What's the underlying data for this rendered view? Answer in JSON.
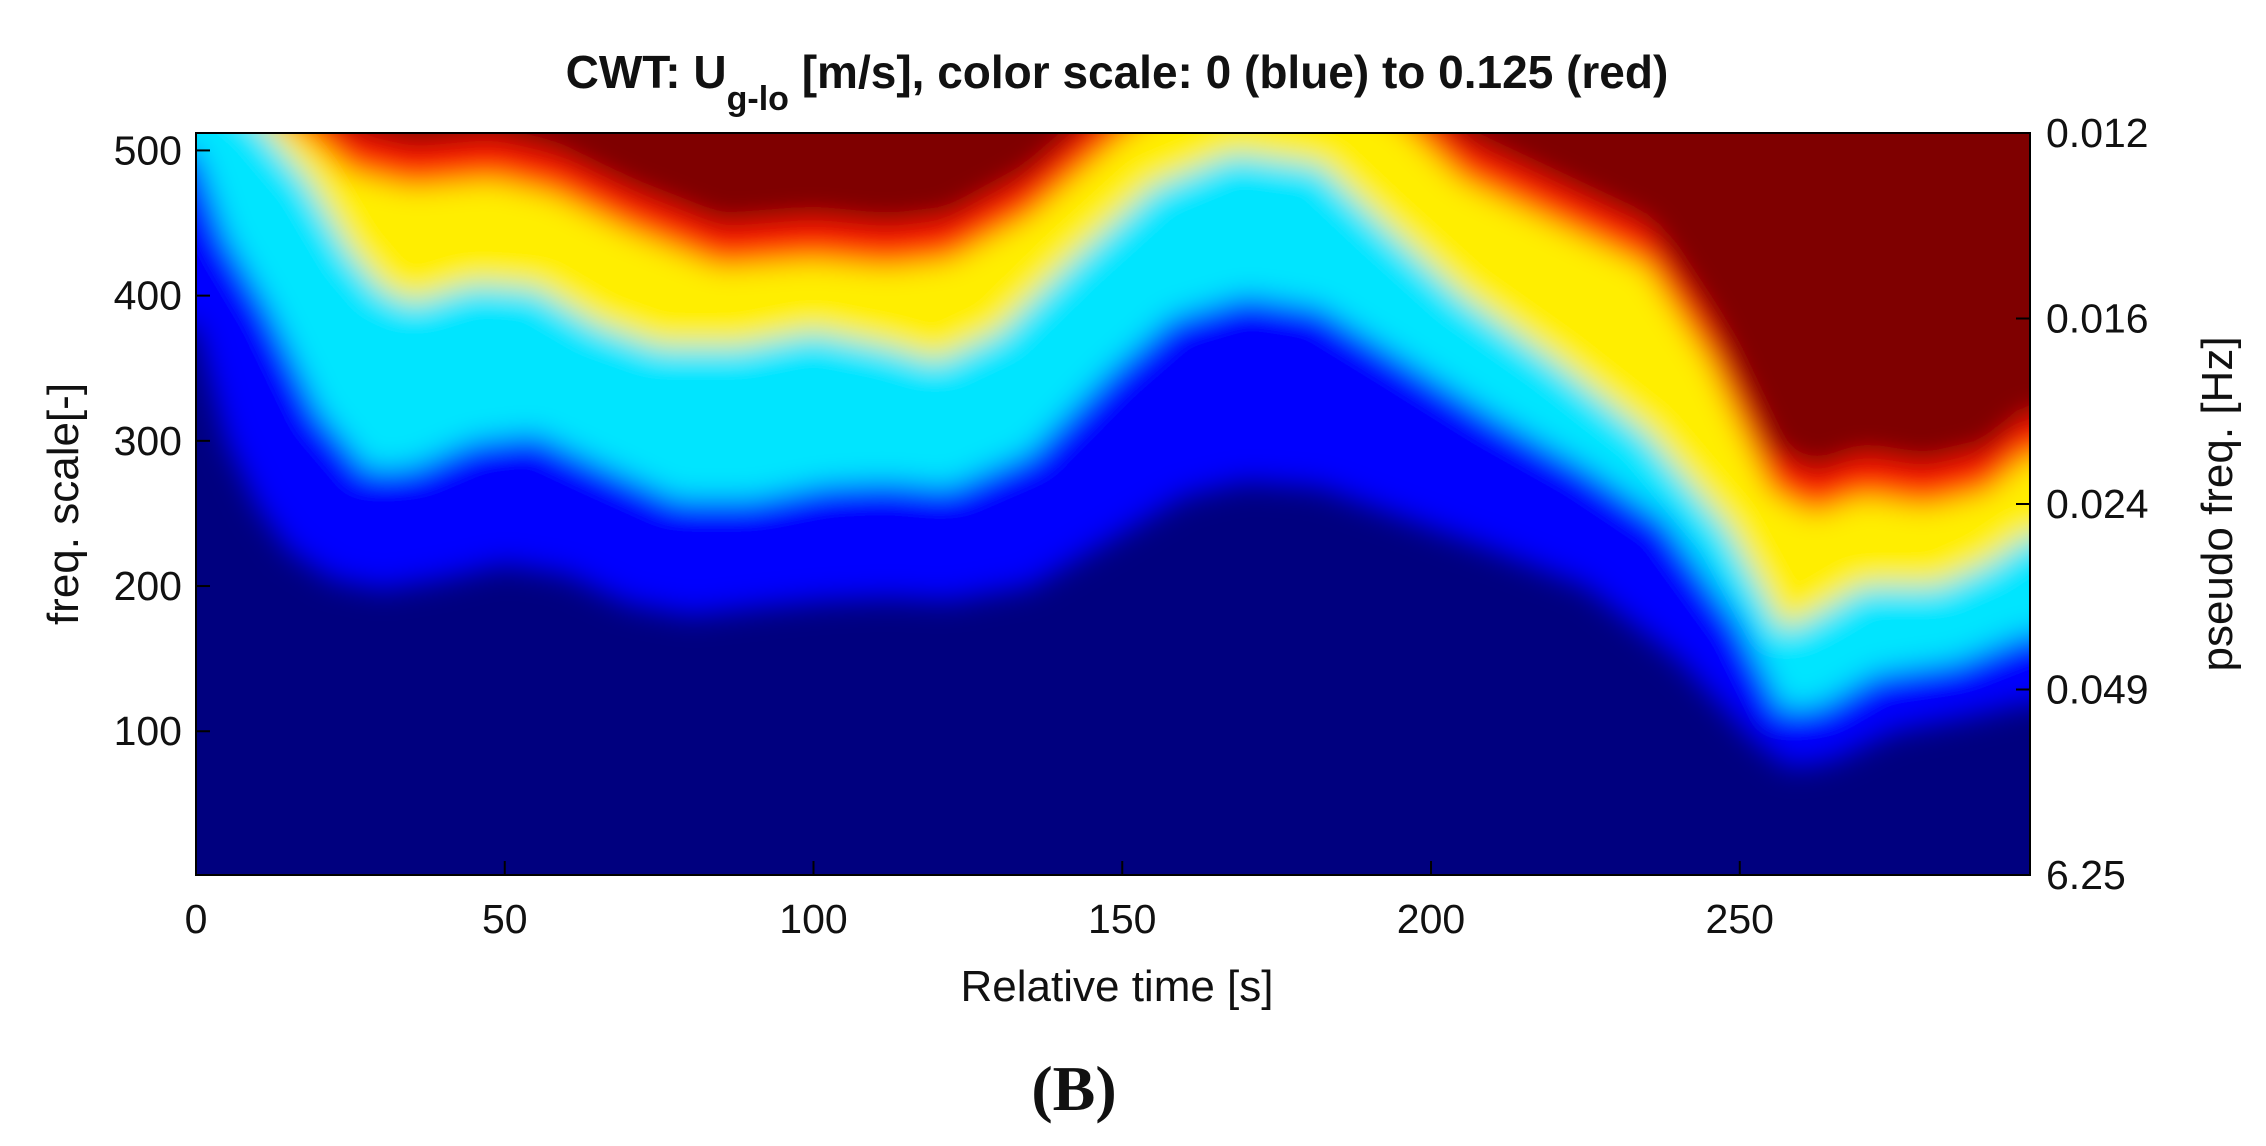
{
  "chart_data": {
    "type": "heatmap",
    "title": {
      "prefix": "CWT: U",
      "subscript": "g-lo",
      "suffix": " [m/s], color scale: 0 (blue) to 0.125 (red)"
    },
    "xlabel": "Relative time [s]",
    "ylabel": "freq. scale[-]",
    "ylabel_right": "pseudo freq. [Hz]",
    "xlim": [
      0,
      297
    ],
    "ylim": [
      1,
      512
    ],
    "x_ticks": [
      "0",
      "50",
      "100",
      "150",
      "200",
      "250"
    ],
    "y_ticks": [
      "100",
      "200",
      "300",
      "400",
      "500"
    ],
    "y_right_ticks": [
      "0.012",
      "0.016",
      "0.024",
      "0.049",
      "6.25"
    ],
    "color_scale": {
      "min": 0,
      "max": 0.125,
      "colormap": "jet",
      "low_color": "#00007f",
      "high_color": "#7f0000"
    },
    "contours": {
      "red_boundary": [
        [
          0,
          560
        ],
        [
          18,
          510
        ],
        [
          25,
          485
        ],
        [
          35,
          475
        ],
        [
          48,
          480
        ],
        [
          58,
          470
        ],
        [
          70,
          445
        ],
        [
          85,
          420
        ],
        [
          100,
          425
        ],
        [
          112,
          420
        ],
        [
          122,
          425
        ],
        [
          135,
          455
        ],
        [
          150,
          510
        ],
        [
          160,
          540
        ],
        [
          180,
          560
        ],
        [
          195,
          520
        ],
        [
          205,
          480
        ],
        [
          220,
          450
        ],
        [
          235,
          420
        ],
        [
          245,
          355
        ],
        [
          255,
          265
        ],
        [
          262,
          250
        ],
        [
          270,
          262
        ],
        [
          280,
          255
        ],
        [
          290,
          265
        ],
        [
          297,
          290
        ]
      ],
      "yellow_boundary": [
        [
          0,
          555
        ],
        [
          10,
          520
        ],
        [
          18,
          480
        ],
        [
          25,
          430
        ],
        [
          30,
          405
        ],
        [
          35,
          395
        ],
        [
          45,
          408
        ],
        [
          55,
          405
        ],
        [
          65,
          380
        ],
        [
          75,
          365
        ],
        [
          88,
          365
        ],
        [
          100,
          375
        ],
        [
          112,
          365
        ],
        [
          120,
          355
        ],
        [
          130,
          375
        ],
        [
          142,
          425
        ],
        [
          155,
          475
        ],
        [
          168,
          498
        ],
        [
          182,
          490
        ],
        [
          192,
          450
        ],
        [
          205,
          400
        ],
        [
          220,
          355
        ],
        [
          235,
          305
        ],
        [
          248,
          240
        ],
        [
          257,
          170
        ],
        [
          262,
          180
        ],
        [
          270,
          200
        ],
        [
          282,
          200
        ],
        [
          290,
          215
        ],
        [
          297,
          235
        ]
      ],
      "cyan_boundary": [
        [
          0,
          500
        ],
        [
          5,
          440
        ],
        [
          12,
          390
        ],
        [
          20,
          320
        ],
        [
          28,
          280
        ],
        [
          35,
          282
        ],
        [
          45,
          300
        ],
        [
          55,
          305
        ],
        [
          65,
          285
        ],
        [
          78,
          260
        ],
        [
          90,
          260
        ],
        [
          102,
          270
        ],
        [
          112,
          272
        ],
        [
          122,
          268
        ],
        [
          135,
          292
        ],
        [
          148,
          348
        ],
        [
          158,
          385
        ],
        [
          170,
          400
        ],
        [
          182,
          392
        ],
        [
          195,
          358
        ],
        [
          210,
          318
        ],
        [
          225,
          282
        ],
        [
          238,
          245
        ],
        [
          250,
          175
        ],
        [
          257,
          115
        ],
        [
          263,
          118
        ],
        [
          272,
          140
        ],
        [
          285,
          148
        ],
        [
          297,
          168
        ]
      ],
      "blue_boundary": [
        [
          0,
          380
        ],
        [
          5,
          300
        ],
        [
          10,
          255
        ],
        [
          15,
          225
        ],
        [
          22,
          205
        ],
        [
          30,
          198
        ],
        [
          40,
          205
        ],
        [
          50,
          215
        ],
        [
          60,
          208
        ],
        [
          70,
          188
        ],
        [
          80,
          180
        ],
        [
          92,
          186
        ],
        [
          102,
          190
        ],
        [
          112,
          192
        ],
        [
          122,
          190
        ],
        [
          135,
          200
        ],
        [
          148,
          232
        ],
        [
          160,
          262
        ],
        [
          170,
          272
        ],
        [
          182,
          268
        ],
        [
          195,
          248
        ],
        [
          210,
          225
        ],
        [
          225,
          200
        ],
        [
          240,
          150
        ],
        [
          252,
          95
        ],
        [
          258,
          75
        ],
        [
          265,
          80
        ],
        [
          275,
          100
        ],
        [
          287,
          110
        ],
        [
          297,
          120
        ]
      ]
    }
  },
  "panel_label": "(B)"
}
